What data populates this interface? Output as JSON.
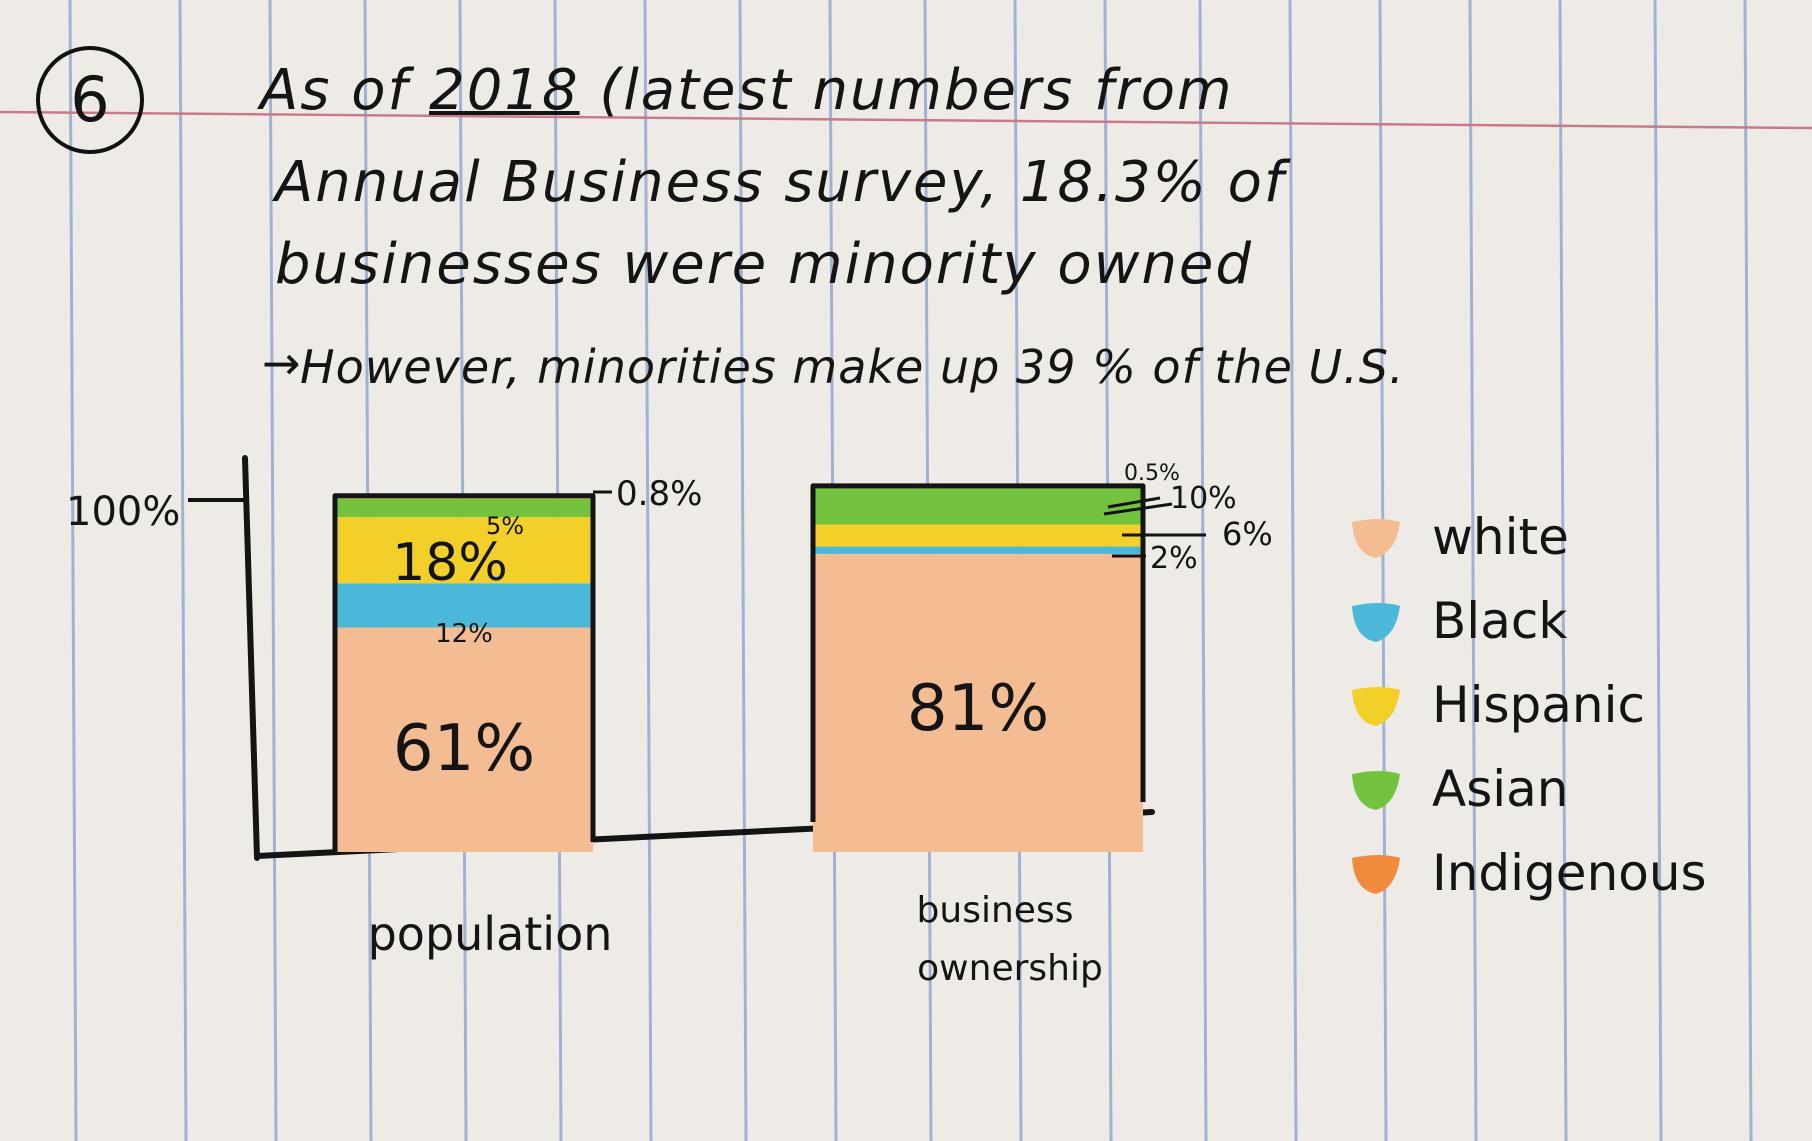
{
  "note": {
    "number": "6",
    "line1_prefix": "As of ",
    "year": "2018",
    "line1_suffix": " (latest numbers from",
    "line2": "Annual Business survey, 18.3% of",
    "line3": "businesses were minority owned",
    "line4": "However, minorities make up 39 % of the U.S.",
    "arrow_icon": "arrow-right-icon"
  },
  "colors": {
    "white": "#f4bc92",
    "black": "#4bb8d9",
    "hispanic": "#f3cf2a",
    "asian": "#74c33f",
    "indigenous": "#f08a3c",
    "ink": "#141414",
    "paper": "#eeebe6",
    "rule_blue": "#9fb2d3",
    "margin_red": "#c77b88"
  },
  "chart_data": {
    "type": "bar",
    "stacked": true,
    "categories": [
      "population",
      "business ownership"
    ],
    "ytick_label": "100%",
    "ylim": [
      0,
      100
    ],
    "series": [
      {
        "name": "White",
        "color_key": "white",
        "values": [
          61,
          81
        ],
        "labels": [
          "61%",
          "81%"
        ]
      },
      {
        "name": "Black",
        "color_key": "black",
        "values": [
          12,
          2
        ],
        "labels": [
          "12%",
          "2%"
        ]
      },
      {
        "name": "Hispanic",
        "color_key": "hispanic",
        "values": [
          18,
          6
        ],
        "labels": [
          "18%",
          "6%"
        ]
      },
      {
        "name": "Asian",
        "color_key": "asian",
        "values": [
          5,
          10
        ],
        "labels": [
          "5%",
          "10%"
        ]
      },
      {
        "name": "Indigenous",
        "color_key": "indigenous",
        "values": [
          0.8,
          0.5
        ],
        "labels": [
          "0.8%",
          "0.5%"
        ]
      }
    ],
    "legend": [
      "white",
      "Black",
      "Hispanic",
      "Asian",
      "Indigenous"
    ],
    "legend_position": "right",
    "grid": false
  }
}
